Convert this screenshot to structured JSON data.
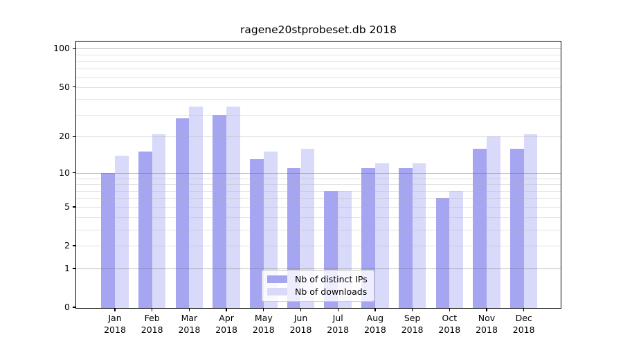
{
  "title": "ragene20stprobeset.db 2018",
  "chart_data": {
    "type": "bar",
    "title": "ragene20stprobeset.db 2018",
    "year": "2018",
    "categories": [
      "Jan",
      "Feb",
      "Mar",
      "Apr",
      "May",
      "Jun",
      "Jul",
      "Aug",
      "Sep",
      "Oct",
      "Nov",
      "Dec"
    ],
    "series": [
      {
        "name": "Nb of distinct IPs",
        "color": "#a5a5f2",
        "values": [
          10,
          15,
          28,
          30,
          13,
          11,
          7,
          11,
          11,
          6,
          16,
          16
        ]
      },
      {
        "name": "Nb of downloads",
        "color": "#d9d9fa",
        "values": [
          14,
          21,
          35,
          35,
          15,
          16,
          7,
          12,
          12,
          7,
          20,
          21
        ]
      }
    ],
    "y_axis": {
      "scale": "log10(value+1)",
      "tick_labels": [
        100,
        50,
        20,
        10,
        5,
        2,
        1,
        0
      ],
      "major_gridlines": [
        1,
        10,
        100
      ],
      "minor_gridlines": [
        2,
        3,
        4,
        5,
        6,
        7,
        8,
        9,
        20,
        30,
        40,
        50,
        60,
        70,
        80,
        90
      ],
      "ylim": [
        0,
        114
      ]
    },
    "x_axis": {
      "label_line2": "2018"
    },
    "legend": {
      "position": "bottom-center-inside",
      "entries": [
        "Nb of distinct IPs",
        "Nb of downloads"
      ]
    },
    "grid": true
  },
  "colors": {
    "background": "#ffffff",
    "axis": "#000000",
    "bar_ips": "#a5a5f2",
    "bar_downloads": "#d9d9fa",
    "major_grid": "#9a9a9a",
    "minor_grid": "#e2e2e2"
  }
}
